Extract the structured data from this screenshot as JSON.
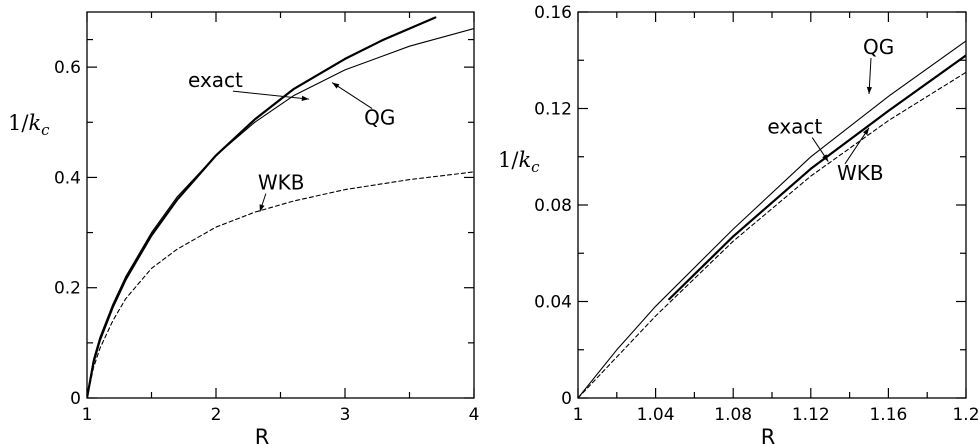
{
  "chart_data": [
    {
      "type": "line",
      "xlabel": "R",
      "ylabel": "1/k_c",
      "xlim": [
        1,
        4
      ],
      "ylim": [
        0,
        0.7
      ],
      "xticks": [
        1,
        2,
        3,
        4
      ],
      "yticks": [
        0,
        0.2,
        0.4,
        0.6
      ],
      "xtick_labels": [
        "1",
        "2",
        "3",
        "4"
      ],
      "ytick_labels": [
        "0",
        "0.2",
        "0.4",
        "0.6"
      ],
      "grid": false,
      "series": [
        {
          "name": "exact",
          "style": "solid-thick",
          "x": [
            1.0,
            1.05,
            1.1,
            1.2,
            1.3,
            1.5,
            1.7,
            2.0,
            2.3,
            2.6,
            3.0,
            3.3,
            3.7
          ],
          "y": [
            0.0,
            0.065,
            0.105,
            0.165,
            0.215,
            0.295,
            0.36,
            0.44,
            0.505,
            0.56,
            0.615,
            0.65,
            0.69
          ]
        },
        {
          "name": "QG",
          "style": "solid-thin",
          "x": [
            1.0,
            1.05,
            1.1,
            1.2,
            1.3,
            1.5,
            1.7,
            2.0,
            2.3,
            2.6,
            3.0,
            3.5,
            4.0
          ],
          "y": [
            0.0,
            0.07,
            0.11,
            0.17,
            0.22,
            0.3,
            0.365,
            0.44,
            0.5,
            0.548,
            0.595,
            0.638,
            0.67
          ]
        },
        {
          "name": "WKB",
          "style": "dashed",
          "x": [
            1.0,
            1.05,
            1.1,
            1.2,
            1.3,
            1.5,
            1.7,
            2.0,
            2.3,
            2.6,
            3.0,
            3.5,
            4.0
          ],
          "y": [
            0.0,
            0.055,
            0.09,
            0.14,
            0.18,
            0.235,
            0.27,
            0.31,
            0.337,
            0.357,
            0.378,
            0.396,
            0.41
          ]
        }
      ],
      "annotations": [
        {
          "text": "exact",
          "points_to": "exact",
          "at": [
            2.72,
            0.542
          ]
        },
        {
          "text": "QG",
          "points_to": "QG",
          "at": [
            2.9,
            0.572
          ]
        },
        {
          "text": "WKB",
          "points_to": "WKB",
          "at": [
            2.34,
            0.338
          ]
        }
      ]
    },
    {
      "type": "line",
      "xlabel": "R",
      "ylabel": "1/k_c",
      "xlim": [
        1,
        1.2
      ],
      "ylim": [
        0,
        0.16
      ],
      "xticks": [
        1,
        1.04,
        1.08,
        1.12,
        1.16,
        1.2
      ],
      "yticks": [
        0,
        0.04,
        0.08,
        0.12,
        0.16
      ],
      "xtick_labels": [
        "1",
        "1.04",
        "1.08",
        "1.12",
        "1.16",
        "1.2"
      ],
      "ytick_labels": [
        "0",
        "0.04",
        "0.08",
        "0.12",
        "0.16"
      ],
      "grid": false,
      "series": [
        {
          "name": "exact",
          "style": "solid-thick",
          "x": [
            1.047,
            1.08,
            1.12,
            1.16,
            1.2
          ],
          "y": [
            0.041,
            0.067,
            0.095,
            0.119,
            0.142
          ]
        },
        {
          "name": "QG",
          "style": "solid-thin",
          "x": [
            1.0,
            1.02,
            1.04,
            1.08,
            1.12,
            1.16,
            1.2
          ],
          "y": [
            0.0,
            0.02,
            0.038,
            0.07,
            0.1,
            0.125,
            0.148
          ]
        },
        {
          "name": "WKB",
          "style": "dashed",
          "x": [
            1.0,
            1.02,
            1.04,
            1.08,
            1.12,
            1.16,
            1.2
          ],
          "y": [
            0.0,
            0.017,
            0.034,
            0.065,
            0.092,
            0.115,
            0.135
          ]
        }
      ],
      "annotations": [
        {
          "text": "QG",
          "points_to": "QG",
          "at": [
            1.15,
            0.126
          ]
        },
        {
          "text": "exact",
          "points_to": "exact",
          "at": [
            1.129,
            0.098
          ]
        },
        {
          "text": "WKB",
          "points_to": "WKB",
          "at": [
            1.15,
            0.112
          ]
        }
      ]
    }
  ]
}
